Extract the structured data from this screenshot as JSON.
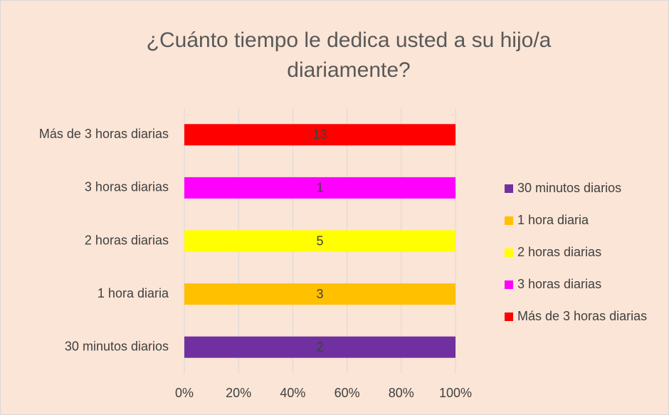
{
  "chart_data": {
    "type": "bar100",
    "orientation": "horizontal",
    "title": "¿Cuánto tiempo le dedica usted a su hijo/a diariamente?",
    "categories": [
      "30 minutos diarios",
      "1 hora diaria",
      "2 horas diarias",
      "3 horas diarias",
      "Más de 3 horas diarias"
    ],
    "series": [
      {
        "name": "30 minutos diarios",
        "color": "#7030a0",
        "values": [
          2,
          null,
          null,
          null,
          null
        ]
      },
      {
        "name": "1 hora diaria",
        "color": "#ffc000",
        "values": [
          null,
          3,
          null,
          null,
          null
        ]
      },
      {
        "name": "2 horas diarias",
        "color": "#ffff00",
        "values": [
          null,
          null,
          5,
          null,
          null
        ]
      },
      {
        "name": "3 horas diarias",
        "color": "#ff00ff",
        "values": [
          null,
          null,
          null,
          1,
          null
        ]
      },
      {
        "name": "Más de 3 horas diarias",
        "color": "#ff0000",
        "values": [
          null,
          null,
          null,
          null,
          13
        ]
      }
    ],
    "xlim": [
      0,
      100
    ],
    "xticks": [
      {
        "value": 0,
        "label": "0%"
      },
      {
        "value": 20,
        "label": "20%"
      },
      {
        "value": 40,
        "label": "40%"
      },
      {
        "value": 60,
        "label": "60%"
      },
      {
        "value": 80,
        "label": "80%"
      },
      {
        "value": 100,
        "label": "100%"
      }
    ],
    "grid": true,
    "legend": "right"
  }
}
